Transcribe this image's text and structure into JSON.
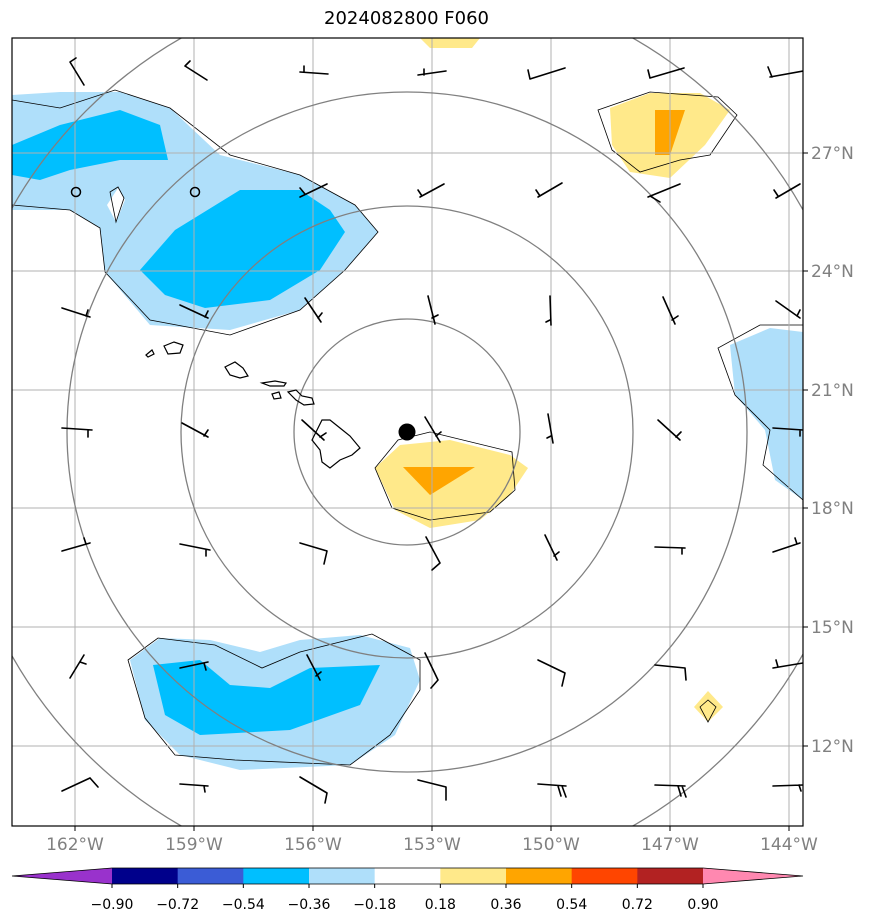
{
  "map": {
    "title": "2024082800 F060",
    "lat_labels": [
      "27°N",
      "24°N",
      "21°N",
      "18°N",
      "15°N",
      "12°N"
    ],
    "lon_labels": [
      "162°W",
      "159°W",
      "156°W",
      "153°W",
      "150°W",
      "147°W",
      "144°W"
    ],
    "center_marker": "black dot"
  },
  "colorbar": {
    "labels": [
      "−0.90",
      "−0.72",
      "−0.54",
      "−0.36",
      "−0.18",
      "0.18",
      "0.36",
      "0.54",
      "0.72",
      "0.90"
    ],
    "colors": [
      "#9932cc",
      "#00008b",
      "#3b5cd6",
      "#00bfff",
      "#afdffa",
      "#ffffff",
      "#ffe98a",
      "#ffa500",
      "#ff4500",
      "#b22222",
      "#ff88b0"
    ]
  },
  "fill_colors": {
    "light_blue": "#afdffa",
    "blue": "#00bfff",
    "light_yellow": "#ffe98a",
    "orange": "#ffa500"
  }
}
